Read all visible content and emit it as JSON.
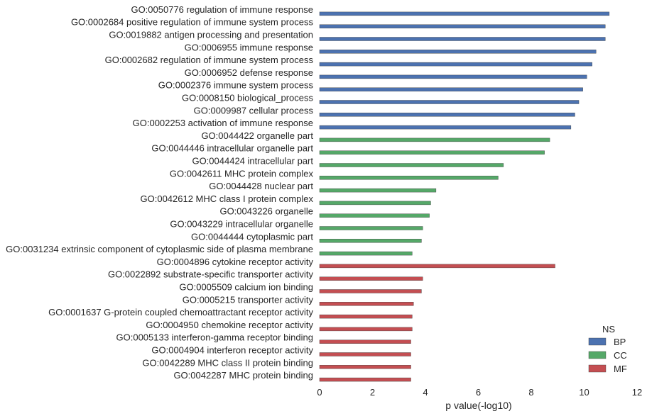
{
  "chart_data": {
    "type": "bar",
    "orientation": "horizontal",
    "xlabel": "p value(-log10)",
    "xlim": [
      0,
      12
    ],
    "xticks": [
      0,
      2,
      4,
      6,
      8,
      10,
      12
    ],
    "grid": false,
    "legend": {
      "title": "NS",
      "placement": "bottom-right",
      "entries": [
        {
          "name": "BP",
          "color": "#4c72b0"
        },
        {
          "name": "CC",
          "color": "#55a868"
        },
        {
          "name": "MF",
          "color": "#c44e52"
        }
      ]
    },
    "categories": [
      "GO:0050776 regulation of immune response",
      "GO:0002684 positive regulation of immune system process",
      "GO:0019882 antigen processing and presentation",
      "GO:0006955 immune response",
      "GO:0002682 regulation of immune system process",
      "GO:0006952 defense response",
      "GO:0002376 immune system process",
      "GO:0008150 biological_process",
      "GO:0009987 cellular process",
      "GO:0002253 activation of immune response",
      "GO:0044422 organelle part",
      "GO:0044446 intracellular organelle part",
      "GO:0044424 intracellular part",
      "GO:0042611 MHC protein complex",
      "GO:0044428 nuclear part",
      "GO:0042612 MHC class I protein complex",
      "GO:0043226 organelle",
      "GO:0043229 intracellular organelle",
      "GO:0044444 cytoplasmic part",
      "GO:0031234 extrinsic component of cytoplasmic side of plasma membrane",
      "GO:0004896 cytokine receptor activity",
      "GO:0022892 substrate-specific transporter activity",
      "GO:0005509 calcium ion binding",
      "GO:0005215 transporter activity",
      "GO:0001637 G-protein coupled chemoattractant receptor activity",
      "GO:0004950 chemokine receptor activity",
      "GO:0005133 interferon-gamma receptor binding",
      "GO:0004904 interferon receptor activity",
      "GO:0042289 MHC class II protein binding",
      "GO:0042287 MHC protein binding"
    ],
    "series": [
      {
        "name": "BP",
        "color": "#4c72b0",
        "values": [
          10.95,
          10.8,
          10.8,
          10.45,
          10.3,
          10.1,
          9.95,
          9.8,
          9.65,
          9.5,
          null,
          null,
          null,
          null,
          null,
          null,
          null,
          null,
          null,
          null,
          null,
          null,
          null,
          null,
          null,
          null,
          null,
          null,
          null,
          null
        ]
      },
      {
        "name": "CC",
        "color": "#55a868",
        "values": [
          null,
          null,
          null,
          null,
          null,
          null,
          null,
          null,
          null,
          null,
          8.7,
          8.5,
          6.95,
          6.75,
          4.4,
          4.2,
          4.15,
          3.9,
          3.85,
          3.5,
          null,
          null,
          null,
          null,
          null,
          null,
          null,
          null,
          null,
          null
        ]
      },
      {
        "name": "MF",
        "color": "#c44e52",
        "values": [
          null,
          null,
          null,
          null,
          null,
          null,
          null,
          null,
          null,
          null,
          null,
          null,
          null,
          null,
          null,
          null,
          null,
          null,
          null,
          null,
          8.9,
          3.9,
          3.85,
          3.55,
          3.5,
          3.5,
          3.45,
          3.45,
          3.45,
          3.45
        ]
      }
    ]
  }
}
